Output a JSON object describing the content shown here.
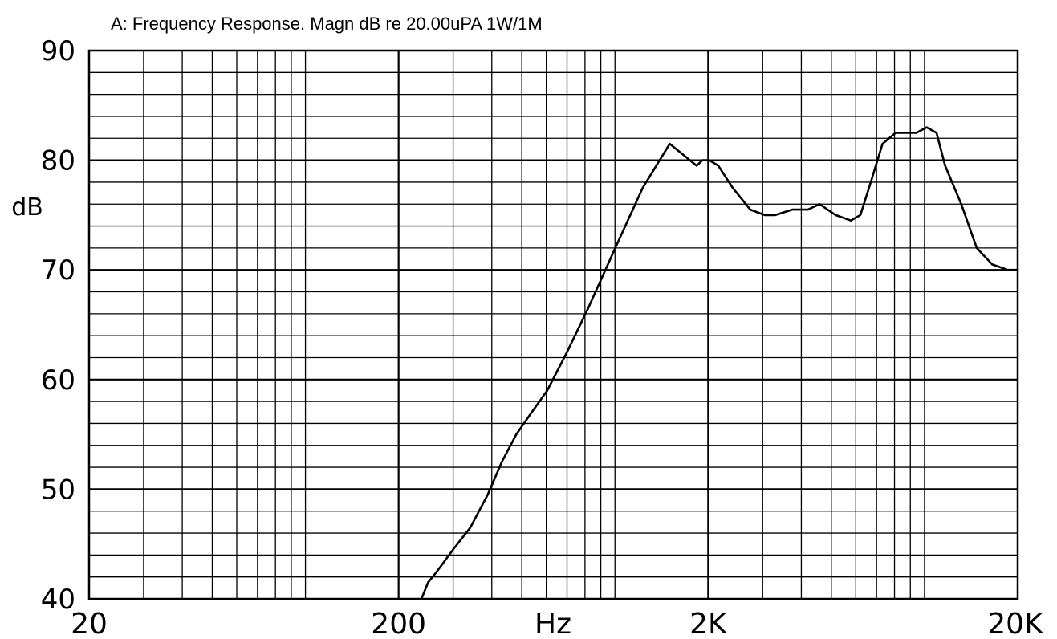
{
  "chart_data": {
    "type": "line",
    "title": "A: Frequency Response. Magn dB re 20.00uPA 1W/1M",
    "xlabel": "Hz",
    "ylabel": "dB",
    "xscale": "log",
    "xlim": [
      20,
      20000
    ],
    "ylim": [
      40,
      90
    ],
    "x_tick_labels": [
      {
        "value": 20,
        "label": "20"
      },
      {
        "value": 200,
        "label": "200"
      },
      {
        "value": 2000,
        "label": "2K"
      },
      {
        "value": 20000,
        "label": "20K"
      }
    ],
    "y_tick_labels": [
      {
        "value": 40,
        "label": "40"
      },
      {
        "value": 50,
        "label": "50"
      },
      {
        "value": 60,
        "label": "60"
      },
      {
        "value": 70,
        "label": "70"
      },
      {
        "value": 80,
        "label": "80"
      },
      {
        "value": 90,
        "label": "90"
      }
    ],
    "grid": true,
    "line_color": "#000000",
    "series": [
      {
        "x": [
          237,
          249,
          266,
          300,
          341,
          388,
          431,
          480,
          538,
          604,
          700,
          819,
          1002,
          1230,
          1503,
          1835,
          1918,
          2019,
          2157,
          2399,
          2736,
          3049,
          3292,
          3740,
          4201,
          4581,
          5164,
          5781,
          6206,
          6706,
          7318,
          8068,
          8713,
          9413,
          10163,
          10939,
          11659,
          13144,
          14750,
          16555,
          18577,
          20000
        ],
        "y": [
          40,
          41.5,
          42.5,
          44.5,
          46.5,
          49.5,
          52.5,
          55,
          57,
          59,
          62.5,
          66.5,
          72,
          77.5,
          81.5,
          79.5,
          80,
          80,
          79.5,
          77.5,
          75.5,
          75,
          75,
          75.5,
          75.5,
          76,
          75,
          74.5,
          75,
          78,
          81.5,
          82.5,
          82.5,
          82.5,
          83,
          82.5,
          79.5,
          76,
          72,
          70.5,
          70,
          70
        ]
      }
    ]
  }
}
